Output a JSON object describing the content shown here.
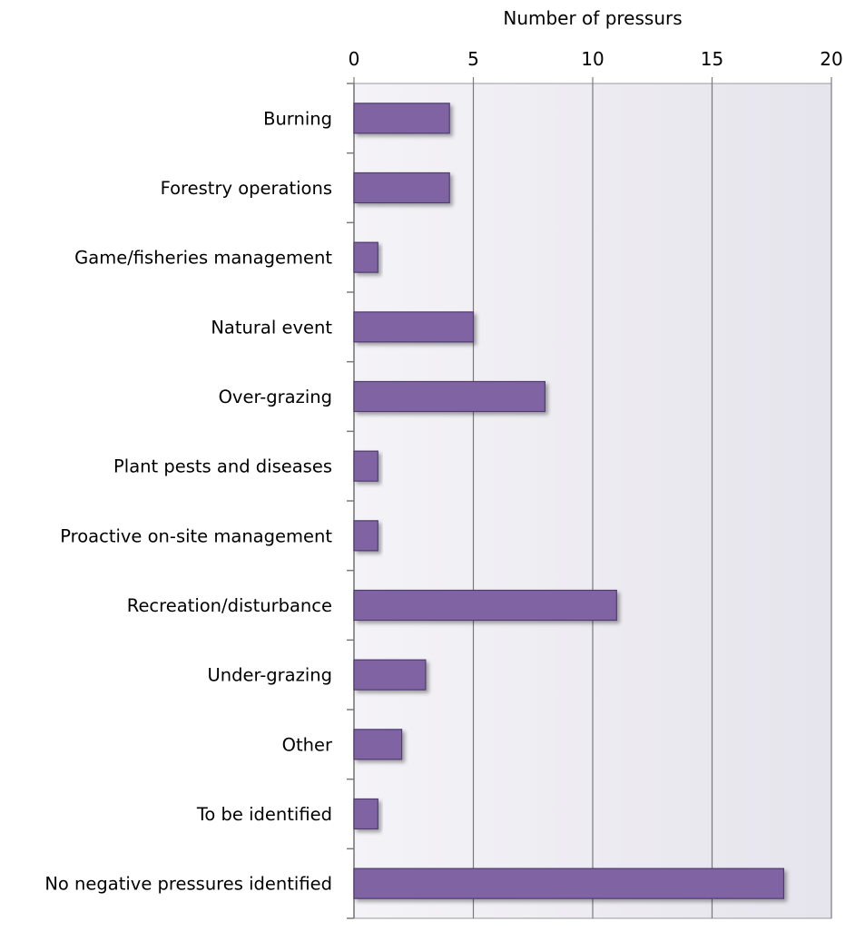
{
  "chart_data": {
    "type": "bar",
    "orientation": "horizontal",
    "title": "",
    "xlabel": "Number of pressurs",
    "ylabel": "",
    "xaxis_position": "top",
    "xlim": [
      0,
      20
    ],
    "xticks": [
      0,
      5,
      10,
      15,
      20
    ],
    "grid": true,
    "legend": "none",
    "categories": [
      "Burning",
      "Forestry operations",
      "Game/fisheries management",
      "Natural event",
      "Over-grazing",
      "Plant pests and diseases",
      "Proactive on-site management",
      "Recreation/disturbance",
      "Under-grazing",
      "Other",
      "To be identified",
      "No negative pressures identified"
    ],
    "values": [
      4,
      4,
      1,
      5,
      8,
      1,
      1,
      11,
      3,
      2,
      1,
      18
    ],
    "colors": {
      "bar": "#8064a2",
      "bar_edge": "#4f3d6e",
      "plot_background": "#ecebf1",
      "gridline": "#7a7a7a"
    }
  }
}
